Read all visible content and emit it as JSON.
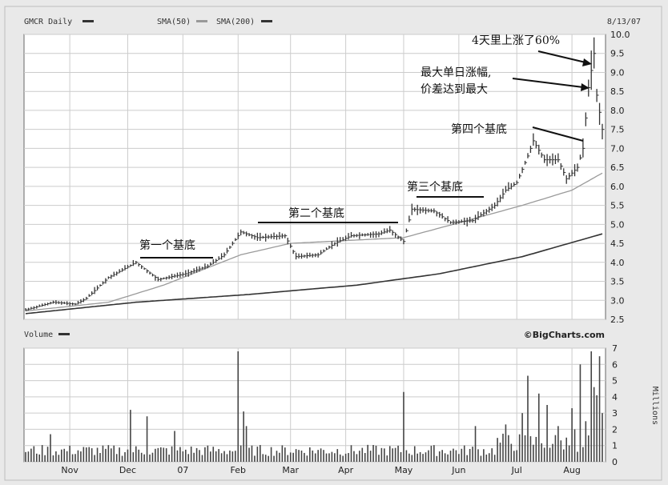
{
  "header": {
    "title": "GMCR Daily",
    "sma50": "SMA(50)",
    "sma200": "SMA(200)",
    "date": "8/13/07"
  },
  "volume_panel": {
    "label": "Volume",
    "brand": "©BigCharts.com",
    "unit": "Millions"
  },
  "colors": {
    "background": "#e9e9e9",
    "plot": "#ffffff",
    "grid": "#c8c8c8",
    "price": "#333333",
    "sma50": "#999999",
    "sma200": "#333333",
    "volume": "#444444"
  },
  "annotations": {
    "base1": "第一个基底",
    "base2": "第二个基底",
    "base3": "第三个基底",
    "base4": "第四个基底",
    "max_gain_line1": "最大单日涨幅,",
    "max_gain_line2": "价差达到最大",
    "rise60": "4天里上涨了60%"
  },
  "chart_data": {
    "type": "line",
    "title": "GMCR Daily",
    "xlabel": "",
    "ylabel": "",
    "ylim": [
      2.5,
      10.0
    ],
    "yticks": [
      "10.0",
      "9.5",
      "9.0",
      "8.5",
      "8.0",
      "7.5",
      "7.0",
      "6.5",
      "6.0",
      "5.5",
      "5.0",
      "4.5",
      "4.0",
      "3.5",
      "3.0",
      "2.5"
    ],
    "x_month_ticks": [
      {
        "label": "Nov",
        "day": 16
      },
      {
        "label": "Dec",
        "day": 37
      },
      {
        "label": "07",
        "day": 57
      },
      {
        "label": "Feb",
        "day": 77
      },
      {
        "label": "Mar",
        "day": 96
      },
      {
        "label": "Apr",
        "day": 116
      },
      {
        "label": "May",
        "day": 137
      },
      {
        "label": "Jun",
        "day": 157
      },
      {
        "label": "Jul",
        "day": 178
      },
      {
        "label": "Aug",
        "day": 198
      }
    ],
    "total_days": 209,
    "price_keypoints": [
      [
        0,
        2.75
      ],
      [
        10,
        2.95
      ],
      [
        18,
        2.9
      ],
      [
        22,
        3.05
      ],
      [
        30,
        3.6
      ],
      [
        40,
        4.0
      ],
      [
        48,
        3.55
      ],
      [
        58,
        3.7
      ],
      [
        66,
        3.9
      ],
      [
        72,
        4.2
      ],
      [
        78,
        4.8
      ],
      [
        84,
        4.65
      ],
      [
        94,
        4.7
      ],
      [
        98,
        4.15
      ],
      [
        106,
        4.2
      ],
      [
        112,
        4.5
      ],
      [
        118,
        4.7
      ],
      [
        128,
        4.75
      ],
      [
        132,
        4.85
      ],
      [
        137,
        4.55
      ],
      [
        140,
        5.4
      ],
      [
        148,
        5.35
      ],
      [
        154,
        5.05
      ],
      [
        162,
        5.1
      ],
      [
        170,
        5.5
      ],
      [
        174,
        5.9
      ],
      [
        178,
        6.1
      ],
      [
        182,
        6.8
      ],
      [
        184,
        7.2
      ],
      [
        188,
        6.7
      ],
      [
        193,
        6.7
      ],
      [
        196,
        6.2
      ],
      [
        200,
        6.5
      ],
      [
        202,
        7.0
      ],
      [
        204,
        8.6
      ],
      [
        206,
        9.5
      ],
      [
        207,
        8.4
      ],
      [
        209,
        7.5
      ]
    ],
    "sma50_keypoints": [
      [
        0,
        2.72
      ],
      [
        30,
        2.95
      ],
      [
        50,
        3.4
      ],
      [
        78,
        4.2
      ],
      [
        96,
        4.5
      ],
      [
        137,
        4.65
      ],
      [
        160,
        5.1
      ],
      [
        180,
        5.5
      ],
      [
        198,
        5.9
      ],
      [
        209,
        6.35
      ]
    ],
    "sma200_keypoints": [
      [
        0,
        2.65
      ],
      [
        40,
        2.95
      ],
      [
        80,
        3.15
      ],
      [
        120,
        3.4
      ],
      [
        150,
        3.7
      ],
      [
        180,
        4.15
      ],
      [
        209,
        4.75
      ]
    ],
    "volume": {
      "ylim": [
        0,
        7
      ],
      "yticks": [
        "0",
        "1",
        "2",
        "3",
        "4",
        "5",
        "6",
        "7"
      ],
      "baseline": 0.7,
      "spikes": [
        [
          9,
          1.7
        ],
        [
          38,
          3.2
        ],
        [
          44,
          2.8
        ],
        [
          54,
          1.9
        ],
        [
          77,
          6.8
        ],
        [
          79,
          3.1
        ],
        [
          80,
          2.2
        ],
        [
          137,
          4.3
        ],
        [
          163,
          2.2
        ],
        [
          174,
          2.3
        ],
        [
          180,
          3.0
        ],
        [
          182,
          5.3
        ],
        [
          186,
          4.2
        ],
        [
          189,
          3.5
        ],
        [
          193,
          2.2
        ],
        [
          198,
          3.3
        ],
        [
          199,
          2.0
        ],
        [
          201,
          6.0
        ],
        [
          203,
          2.5
        ],
        [
          205,
          6.8
        ],
        [
          206,
          4.6
        ],
        [
          207,
          4.1
        ],
        [
          208,
          6.5
        ],
        [
          209,
          3.0
        ]
      ]
    }
  }
}
